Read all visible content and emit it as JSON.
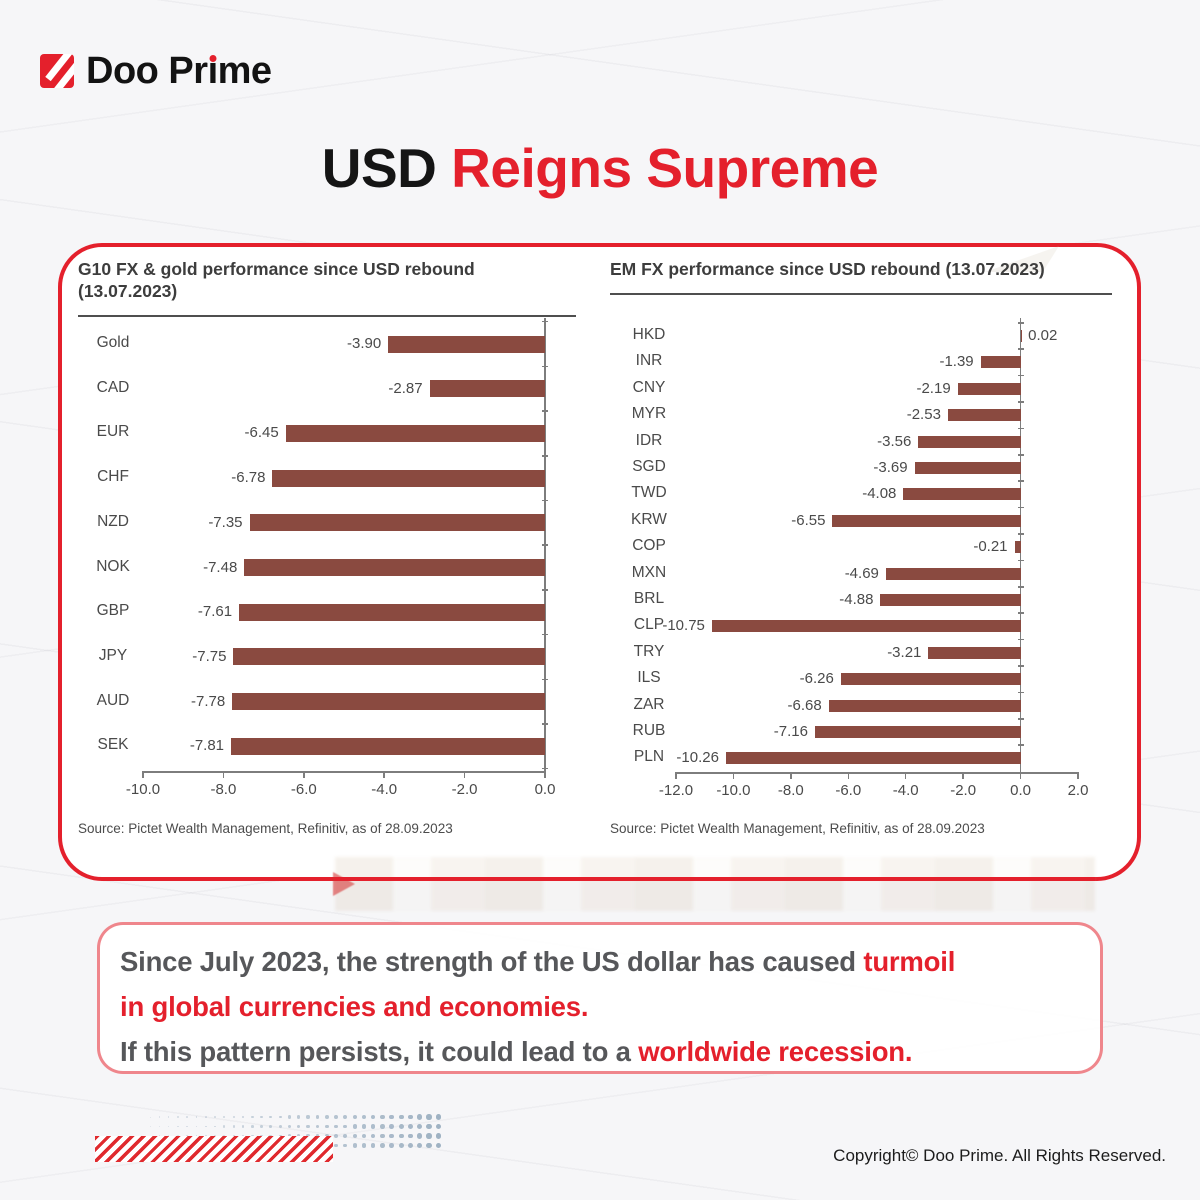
{
  "brand": "Doo Prime",
  "brand_display": {
    "pre": "Doo Pr",
    "i_base": "ı",
    "post": "me"
  },
  "title": {
    "black": "USD",
    "red": " Reigns Supreme"
  },
  "colors": {
    "accent_red": "#e4202c",
    "bar_maroon": "#8a4a40",
    "body_gray": "#56575a",
    "dots_blue_gray": "#9fb2c3"
  },
  "chart_data": [
    {
      "type": "bar",
      "orientation": "horizontal",
      "title": "G10 FX & gold performance since USD rebound (13.07.2023)",
      "categories": [
        "Gold",
        "CAD",
        "EUR",
        "CHF",
        "NZD",
        "NOK",
        "GBP",
        "JPY",
        "AUD",
        "SEK"
      ],
      "values": [
        -3.9,
        -2.87,
        -6.45,
        -6.78,
        -7.35,
        -7.48,
        -7.61,
        -7.75,
        -7.78,
        -7.81
      ],
      "value_label_decimals": 2,
      "xlabel": "",
      "ylabel": "",
      "xlim": [
        -10.0,
        0.0
      ],
      "xticks": [
        -10.0,
        -8.0,
        -6.0,
        -4.0,
        -2.0,
        0.0
      ],
      "grid": false,
      "legend": "none",
      "bar_color": "#8a4a40",
      "source": "Source: Pictet Wealth Management, Refinitiv, as of 28.09.2023"
    },
    {
      "type": "bar",
      "orientation": "horizontal",
      "title": "EM FX performance since USD rebound (13.07.2023)",
      "categories": [
        "HKD",
        "INR",
        "CNY",
        "MYR",
        "IDR",
        "SGD",
        "TWD",
        "KRW",
        "COP",
        "MXN",
        "BRL",
        "CLP",
        "TRY",
        "ILS",
        "ZAR",
        "RUB",
        "PLN"
      ],
      "values": [
        0.02,
        -1.39,
        -2.19,
        -2.53,
        -3.56,
        -3.69,
        -4.08,
        -6.55,
        -0.21,
        -4.69,
        -4.88,
        -10.75,
        -3.21,
        -6.26,
        -6.68,
        -7.16,
        -10.26
      ],
      "value_label_decimals": 2,
      "xlabel": "",
      "ylabel": "",
      "xlim": [
        -12.0,
        2.0
      ],
      "xticks": [
        -12.0,
        -10.0,
        -8.0,
        -6.0,
        -4.0,
        -2.0,
        0.0,
        2.0
      ],
      "grid": false,
      "legend": "none",
      "bar_color": "#8a4a40",
      "source": "Source: Pictet Wealth Management, Refinitiv, as of 28.09.2023"
    }
  ],
  "callout": {
    "lines": [
      [
        {
          "t": "Since July 2023, the strength of the US dollar has caused ",
          "red": false
        },
        {
          "t": "turmoil",
          "red": true
        }
      ],
      [
        {
          "t": "in global currencies and economies.",
          "red": true
        }
      ],
      [
        {
          "t": "If this pattern persists, it could lead to a ",
          "red": false
        },
        {
          "t": "worldwide recession.",
          "red": true
        }
      ]
    ]
  },
  "footer": {
    "copyright": "Copyright© Doo Prime. All Rights Reserved."
  }
}
